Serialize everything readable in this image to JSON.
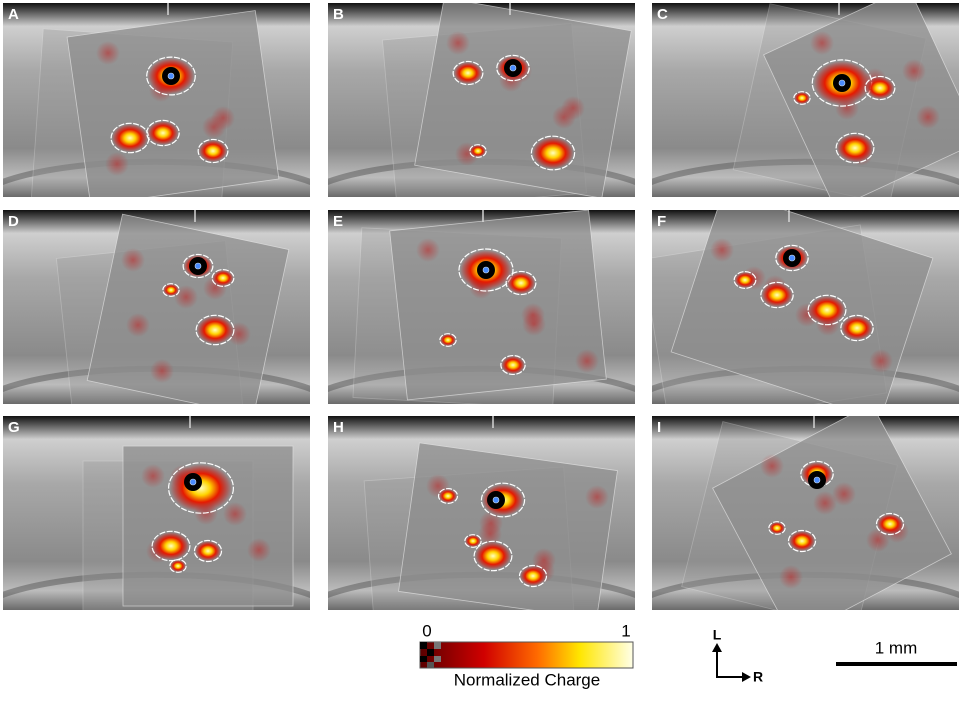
{
  "panels": [
    {
      "label": "A"
    },
    {
      "label": "B"
    },
    {
      "label": "C"
    },
    {
      "label": "D"
    },
    {
      "label": "E"
    },
    {
      "label": "F"
    },
    {
      "label": "G"
    },
    {
      "label": "H"
    },
    {
      "label": "I"
    }
  ],
  "colorbar": {
    "min": 0,
    "max": 1,
    "title": "Normalized Charge"
  },
  "orientation": {
    "up": "L",
    "right": "R"
  },
  "scale_bar": {
    "label": "1 mm"
  }
}
